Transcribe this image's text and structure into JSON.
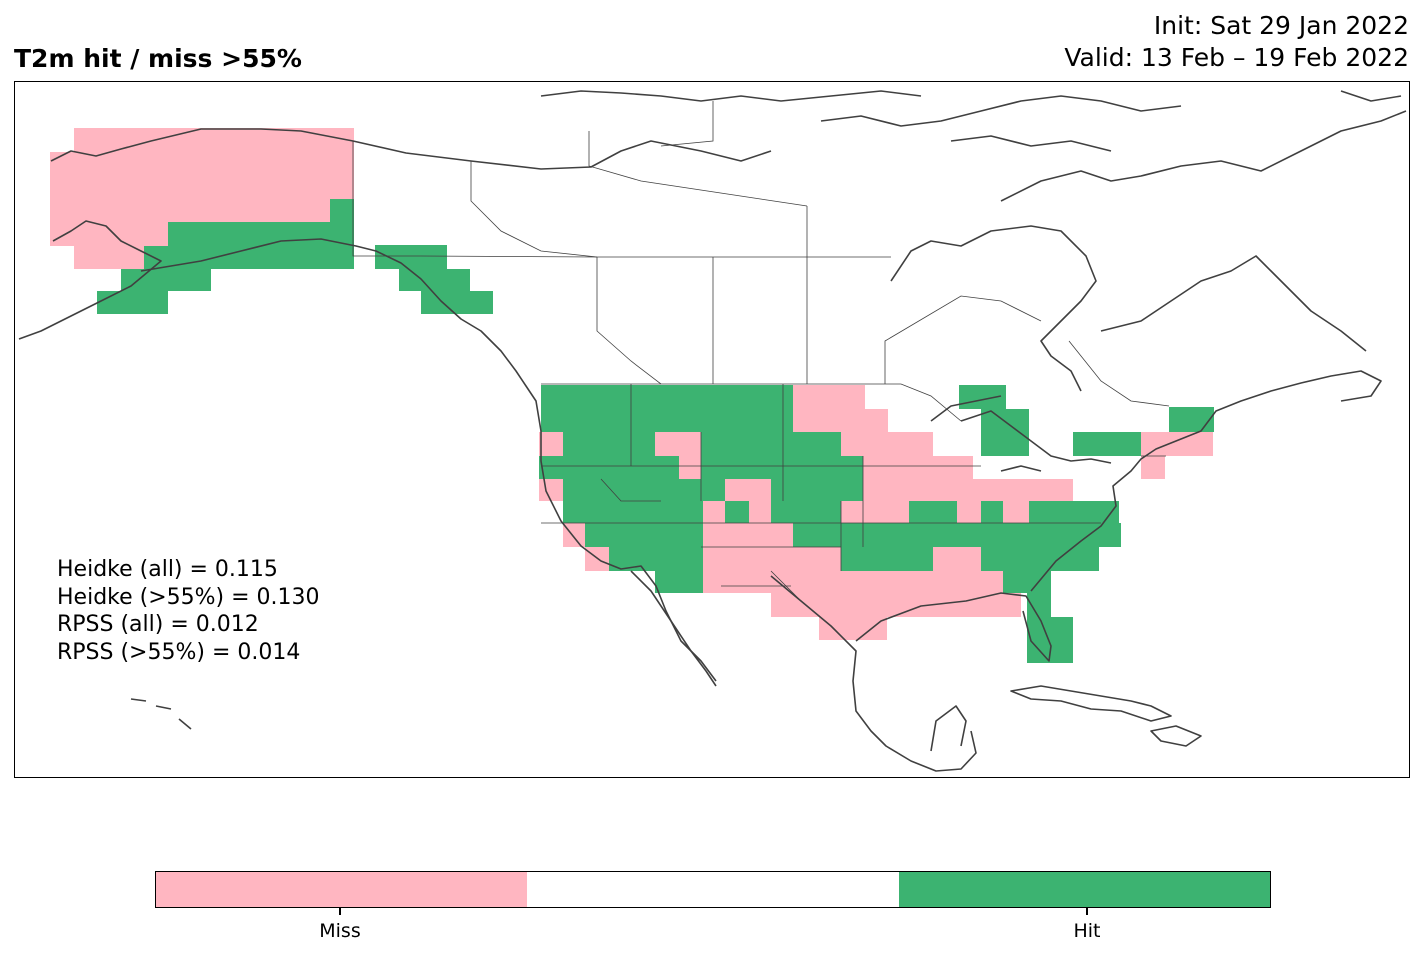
{
  "header": {
    "title": "T2m hit / miss  >55%",
    "init": "Init: Sat 29 Jan 2022",
    "valid": "Valid: 13 Feb – 19 Feb 2022"
  },
  "stats": {
    "heidke_all": "Heidke (all) = 0.115",
    "heidke_55": "Heidke (>55%) = 0.130",
    "rpss_all": "RPSS (all) = 0.012",
    "rpss_55": "RPSS (>55%) = 0.014"
  },
  "colorbar": {
    "categories": [
      "Miss",
      "",
      "Hit"
    ],
    "colors": [
      "#ffb6c1",
      "#ffffff",
      "#3cb371"
    ],
    "tick_labels": [
      "Miss",
      "Hit"
    ]
  },
  "colors": {
    "miss": "#ffb6c1",
    "hit": "#3cb371",
    "coast": "#404040"
  }
}
